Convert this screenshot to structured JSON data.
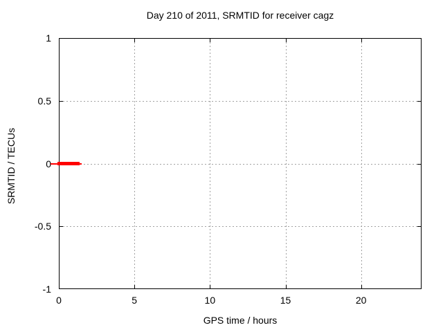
{
  "figure": {
    "title": "Day 210 of 2011, SRMTID for receiver cagz",
    "xlabel": "GPS time / hours",
    "ylabel": "SRMTID / TECUs"
  },
  "colors": {
    "background": "#ffffff",
    "axis": "#000000",
    "grid": "#a0a0a0",
    "data": "#ff0000"
  },
  "chart_data": {
    "type": "line",
    "title": "Day 210 of 2011, SRMTID for receiver cagz",
    "xlabel": "GPS time / hours",
    "ylabel": "SRMTID / TECUs",
    "xlim": [
      0,
      24
    ],
    "ylim": [
      -1,
      1
    ],
    "xticks": {
      "values": [
        0,
        5,
        10,
        15,
        20
      ],
      "labels": [
        "0",
        "5",
        "10",
        "15",
        "20"
      ]
    },
    "yticks": {
      "values": [
        1,
        0.5,
        0,
        -0.5,
        -1
      ],
      "labels": [
        "1",
        "0.5",
        "0",
        "-0.5",
        "-1"
      ]
    },
    "grid": true,
    "grid_style": "dashed",
    "legend": "none",
    "series": [
      {
        "name": "SRMTID",
        "color": "#ff0000",
        "description": "Flat line at SRMTID = 0 TECUs covering only GPS time ~0 to ~1.5 hours; rest of day empty",
        "segments": [
          {
            "x_start": -0.55,
            "x_end": 1.5,
            "y": 0,
            "thickness": "thin"
          },
          {
            "x_start": -0.1,
            "x_end": 1.35,
            "y": 0,
            "thickness": "thick"
          }
        ]
      }
    ]
  }
}
